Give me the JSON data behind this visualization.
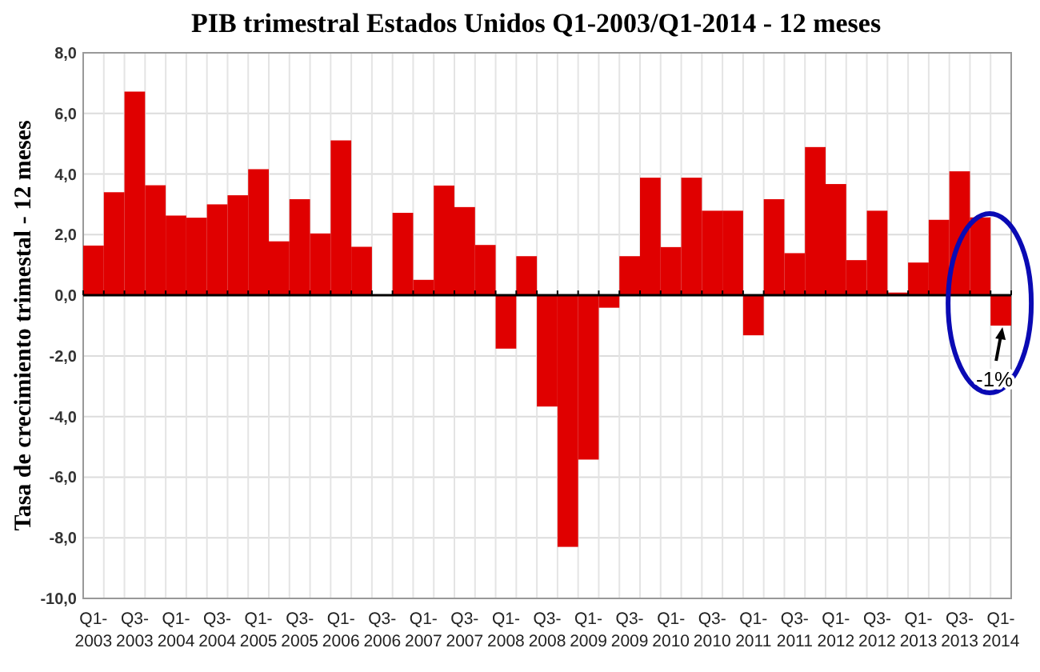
{
  "chart_data": {
    "type": "bar",
    "title": "PIB trimestral Estados Unidos Q1-2003/Q1-2014 - 12 meses",
    "ylabel": "Tasa de crecimiento trimestal - 12 meses",
    "categories": [
      "Q1-\n2003",
      null,
      "Q3-\n2003",
      null,
      "Q1-\n2004",
      null,
      "Q3-\n2004",
      null,
      "Q1-\n2005",
      null,
      "Q3-\n2005",
      null,
      "Q1-\n2006",
      null,
      "Q3-\n2006",
      null,
      "Q1-\n2007",
      null,
      "Q3-\n2007",
      null,
      "Q1-\n2008",
      null,
      "Q3-\n2008",
      null,
      "Q1-\n2009",
      null,
      "Q3-\n2009",
      null,
      "Q1-\n2010",
      null,
      "Q3-\n2010",
      null,
      "Q1-\n2011",
      null,
      "Q3-\n2011",
      null,
      "Q1-\n2012",
      null,
      "Q3-\n2012",
      null,
      "Q1-\n2013",
      null,
      "Q3-\n2013",
      null,
      "Q1-\n2014"
    ],
    "values": [
      1.64,
      3.4,
      6.72,
      3.63,
      2.63,
      2.56,
      3.0,
      3.3,
      4.16,
      1.78,
      3.17,
      2.04,
      5.11,
      1.6,
      0,
      2.72,
      0.51,
      3.62,
      2.91,
      1.66,
      -1.76,
      1.29,
      -3.67,
      -8.3,
      -5.42,
      -0.41,
      1.29,
      3.88,
      1.59,
      3.88,
      2.79,
      2.79,
      -1.32,
      3.17,
      1.39,
      4.89,
      3.67,
      1.16,
      2.79,
      0.09,
      1.08,
      2.49,
      4.09,
      2.57,
      -1.0
    ],
    "color": "#e00000",
    "ylim": [
      -10,
      8
    ],
    "yticks": [
      {
        "value": -10,
        "label": "-10,0"
      },
      {
        "value": -8,
        "label": "-8,0"
      },
      {
        "value": -6,
        "label": "-6,0"
      },
      {
        "value": -4,
        "label": "-4,0"
      },
      {
        "value": -2,
        "label": "-2,0"
      },
      {
        "value": 0,
        "label": "0,0"
      },
      {
        "value": 2,
        "label": "2,0"
      },
      {
        "value": 4,
        "label": "4,0"
      },
      {
        "value": 6,
        "label": "6,0"
      },
      {
        "value": 8,
        "label": "8,0"
      }
    ],
    "grid": true,
    "annotations": [
      {
        "text": "-1%",
        "x": "Q1-\n2014",
        "y": -1.0
      }
    ]
  }
}
